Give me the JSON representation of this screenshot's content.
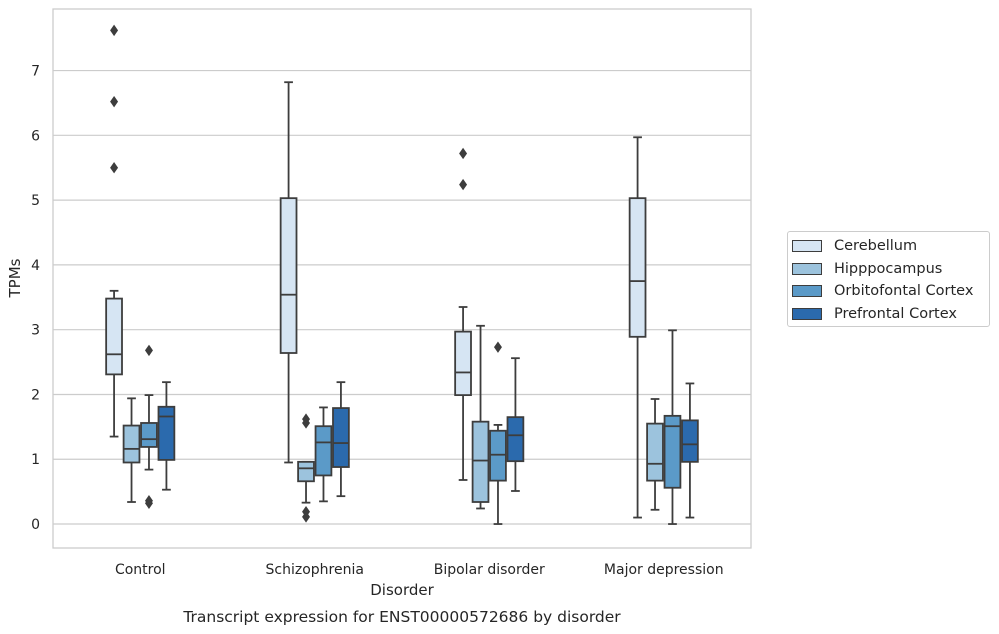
{
  "chart_data": {
    "type": "box",
    "title": "Transcript expression for ENST00000572686 by disorder",
    "xlabel": "Disorder",
    "ylabel": "TPMs",
    "ylim": [
      -0.37,
      7.95
    ],
    "yticks": [
      0,
      1,
      2,
      3,
      4,
      5,
      6,
      7
    ],
    "grid": "horizontal",
    "legend_position": "right",
    "categories": [
      "Control",
      "Schizophrenia",
      "Bipolar disorder",
      "Major depression"
    ],
    "series": [
      {
        "name": "Cerebellum",
        "color": "#d6e5f3",
        "boxes": [
          {
            "whisker_low": 1.35,
            "q1": 2.31,
            "median": 2.62,
            "q3": 3.48,
            "whisker_high": 3.6,
            "outliers": [
              5.5,
              6.52,
              7.62
            ]
          },
          {
            "whisker_low": 0.95,
            "q1": 2.64,
            "median": 3.54,
            "q3": 5.03,
            "whisker_high": 6.82,
            "outliers": []
          },
          {
            "whisker_low": 0.68,
            "q1": 1.99,
            "median": 2.34,
            "q3": 2.97,
            "whisker_high": 3.35,
            "outliers": [
              5.24,
              5.72
            ]
          },
          {
            "whisker_low": 0.1,
            "q1": 2.89,
            "median": 3.75,
            "q3": 5.03,
            "whisker_high": 5.97,
            "outliers": []
          }
        ]
      },
      {
        "name": "Hipppocampus",
        "color": "#9cc3dd",
        "boxes": [
          {
            "whisker_low": 0.34,
            "q1": 0.95,
            "median": 1.16,
            "q3": 1.52,
            "whisker_high": 1.94,
            "outliers": []
          },
          {
            "whisker_low": 0.33,
            "q1": 0.66,
            "median": 0.86,
            "q3": 0.96,
            "whisker_high": 0.96,
            "outliers": [
              0.11,
              0.19,
              1.56,
              1.62
            ]
          },
          {
            "whisker_low": 0.24,
            "q1": 0.34,
            "median": 0.98,
            "q3": 1.58,
            "whisker_high": 3.06,
            "outliers": []
          },
          {
            "whisker_low": 0.22,
            "q1": 0.67,
            "median": 0.93,
            "q3": 1.55,
            "whisker_high": 1.93,
            "outliers": []
          }
        ]
      },
      {
        "name": "Orbitofontal Cortex",
        "color": "#5b9ac8",
        "boxes": [
          {
            "whisker_low": 0.84,
            "q1": 1.19,
            "median": 1.31,
            "q3": 1.56,
            "whisker_high": 1.99,
            "outliers": [
              0.32,
              0.36,
              2.68
            ]
          },
          {
            "whisker_low": 0.35,
            "q1": 0.75,
            "median": 1.26,
            "q3": 1.51,
            "whisker_high": 1.8,
            "outliers": []
          },
          {
            "whisker_low": 0.0,
            "q1": 0.67,
            "median": 1.07,
            "q3": 1.44,
            "whisker_high": 1.53,
            "outliers": [
              2.73
            ]
          },
          {
            "whisker_low": 0.0,
            "q1": 0.56,
            "median": 1.51,
            "q3": 1.67,
            "whisker_high": 2.99,
            "outliers": []
          }
        ]
      },
      {
        "name": "Prefrontal Cortex",
        "color": "#2b6aad",
        "boxes": [
          {
            "whisker_low": 0.53,
            "q1": 0.99,
            "median": 1.66,
            "q3": 1.81,
            "whisker_high": 2.19,
            "outliers": []
          },
          {
            "whisker_low": 0.43,
            "q1": 0.88,
            "median": 1.25,
            "q3": 1.79,
            "whisker_high": 2.19,
            "outliers": []
          },
          {
            "whisker_low": 0.51,
            "q1": 0.97,
            "median": 1.37,
            "q3": 1.65,
            "whisker_high": 2.56,
            "outliers": []
          },
          {
            "whisker_low": 0.1,
            "q1": 0.96,
            "median": 1.23,
            "q3": 1.6,
            "whisker_high": 2.17,
            "outliers": []
          }
        ]
      }
    ]
  }
}
